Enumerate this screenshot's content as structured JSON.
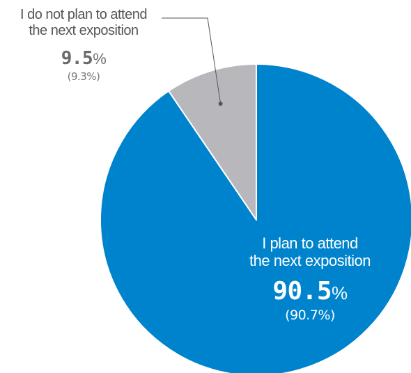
{
  "chart_data": {
    "type": "pie",
    "slices": [
      {
        "label_lines": [
          "I plan to attend",
          "the next exposition"
        ],
        "value": 90.5,
        "value_text": "90.5",
        "unit": "%",
        "previous": "(90.7%)",
        "color": "#0083cd"
      },
      {
        "label_lines": [
          "I do not plan to attend",
          "the next exposition"
        ],
        "value": 9.5,
        "value_text": "9.5",
        "unit": "%",
        "previous": "(9.3%)",
        "color": "#b8b8bc"
      }
    ]
  }
}
